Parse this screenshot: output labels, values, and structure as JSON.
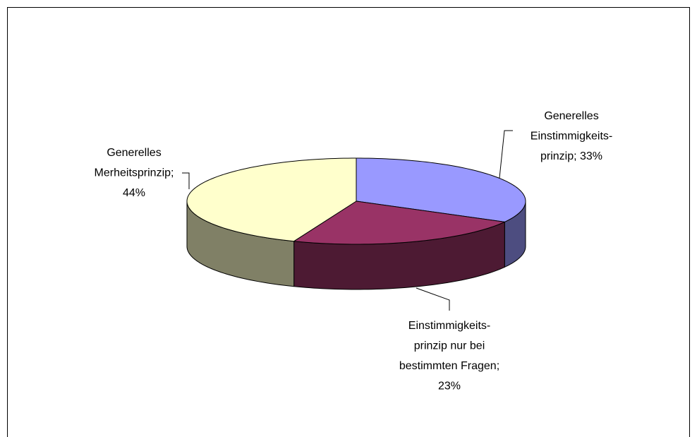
{
  "chart_data": {
    "type": "pie3d",
    "values": [
      33,
      23,
      44
    ],
    "value_labels": [
      [
        "Generelles",
        "Einstimmigkeits-",
        "prinzip; 33%"
      ],
      [
        "Einstimmigkeits-",
        "prinzip nur bei",
        "bestimmten Fragen;",
        "23%"
      ],
      [
        "Generelles",
        "Merheitsprinzip;",
        "44%"
      ]
    ],
    "colors": [
      "#9999ff",
      "#993366",
      "#ffffcc"
    ],
    "side_colors": [
      "#4d4d80",
      "#4d1a33",
      "#808066"
    ]
  }
}
